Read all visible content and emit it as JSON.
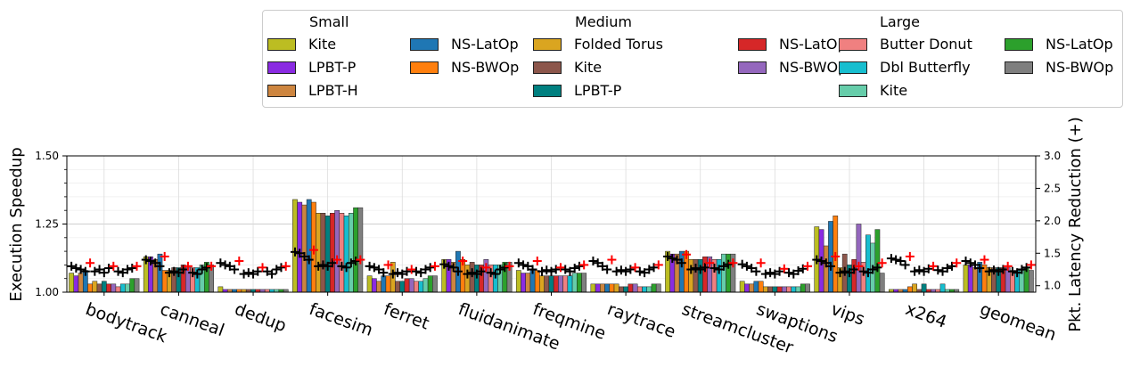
{
  "chart_data": {
    "type": "bar",
    "ylabel_left": "Execution Speedup",
    "ylabel_right": "Pkt. Latency Reduction (+)",
    "ylim_left": [
      1.0,
      1.5
    ],
    "ylim_right": [
      0.9,
      3.0
    ],
    "yticks_left": [
      "1.00",
      "1.25",
      "1.50"
    ],
    "yticks_right": [
      "1.0",
      "1.5",
      "2.0",
      "2.5",
      "3.0"
    ],
    "grid": true,
    "legend_placement": "top-right",
    "categories": [
      "bodytrack",
      "canneal",
      "dedup",
      "facesim",
      "ferret",
      "fluidanimate",
      "freqmine",
      "raytrace",
      "streamcluster",
      "swaptions",
      "vips",
      "x264",
      "geomean"
    ],
    "legend_groups": [
      {
        "title": "Small",
        "entries": [
          {
            "label": "Kite",
            "color": "#bcbd22"
          },
          {
            "label": "LPBT-P",
            "color": "#8a2be2"
          },
          {
            "label": "LPBT-H",
            "color": "#cd853f"
          },
          {
            "label": "NS-LatOp",
            "color": "#1f77b4"
          },
          {
            "label": "NS-BWOp",
            "color": "#ff7f0e"
          }
        ]
      },
      {
        "title": "Medium",
        "entries": [
          {
            "label": "Folded Torus",
            "color": "#daa520"
          },
          {
            "label": "Kite",
            "color": "#8c564b"
          },
          {
            "label": "LPBT-P",
            "color": "#008080"
          },
          {
            "label": "NS-LatOp",
            "color": "#d62728"
          },
          {
            "label": "NS-BWOp",
            "color": "#9467bd"
          }
        ]
      },
      {
        "title": "Large",
        "entries": [
          {
            "label": "Butter Donut",
            "color": "#f08080"
          },
          {
            "label": "Dbl Butterfly",
            "color": "#17becf"
          },
          {
            "label": "Kite",
            "color": "#66cdaa"
          },
          {
            "label": "NS-LatOp",
            "color": "#2ca02c"
          },
          {
            "label": "NS-BWOp",
            "color": "#7f7f7f"
          }
        ]
      }
    ],
    "series_colors": [
      "#bcbd22",
      "#8a2be2",
      "#cd853f",
      "#1f77b4",
      "#ff7f0e",
      "#daa520",
      "#8c564b",
      "#008080",
      "#d62728",
      "#9467bd",
      "#f08080",
      "#17becf",
      "#66cdaa",
      "#2ca02c",
      "#7f7f7f"
    ],
    "speedup_values": [
      [
        1.07,
        1.06,
        1.07,
        1.08,
        1.03,
        1.04,
        1.03,
        1.04,
        1.03,
        1.03,
        1.02,
        1.03,
        1.03,
        1.05,
        1.05
      ],
      [
        1.13,
        1.13,
        1.12,
        1.14,
        1.08,
        1.08,
        1.09,
        1.09,
        1.1,
        1.09,
        1.09,
        1.09,
        1.1,
        1.11,
        1.1
      ],
      [
        1.02,
        1.01,
        1.01,
        1.01,
        1.01,
        1.01,
        1.01,
        1.01,
        1.01,
        1.01,
        1.01,
        1.01,
        1.01,
        1.01,
        1.01
      ],
      [
        1.34,
        1.33,
        1.32,
        1.34,
        1.33,
        1.29,
        1.29,
        1.28,
        1.29,
        1.3,
        1.29,
        1.28,
        1.29,
        1.31,
        1.31
      ],
      [
        1.06,
        1.05,
        1.04,
        1.06,
        1.06,
        1.11,
        1.04,
        1.04,
        1.05,
        1.05,
        1.04,
        1.04,
        1.05,
        1.06,
        1.06
      ],
      [
        1.12,
        1.12,
        1.11,
        1.15,
        1.12,
        1.1,
        1.11,
        1.1,
        1.1,
        1.12,
        1.1,
        1.1,
        1.1,
        1.11,
        1.11
      ],
      [
        1.08,
        1.07,
        1.07,
        1.08,
        1.08,
        1.06,
        1.06,
        1.06,
        1.06,
        1.06,
        1.06,
        1.06,
        1.07,
        1.07,
        1.07
      ],
      [
        1.03,
        1.03,
        1.03,
        1.03,
        1.03,
        1.03,
        1.02,
        1.02,
        1.03,
        1.03,
        1.02,
        1.02,
        1.02,
        1.03,
        1.03
      ],
      [
        1.15,
        1.14,
        1.14,
        1.15,
        1.15,
        1.12,
        1.12,
        1.12,
        1.13,
        1.13,
        1.12,
        1.12,
        1.14,
        1.14,
        1.14
      ],
      [
        1.04,
        1.03,
        1.03,
        1.04,
        1.04,
        1.02,
        1.02,
        1.02,
        1.02,
        1.02,
        1.02,
        1.02,
        1.02,
        1.03,
        1.03
      ],
      [
        1.24,
        1.23,
        1.17,
        1.26,
        1.28,
        1.09,
        1.14,
        1.1,
        1.12,
        1.25,
        1.11,
        1.21,
        1.18,
        1.23,
        1.07
      ],
      [
        1.01,
        1.01,
        1.01,
        1.01,
        1.02,
        1.03,
        1.01,
        1.03,
        1.01,
        1.01,
        1.01,
        1.03,
        1.01,
        1.01,
        1.01
      ],
      [
        1.1,
        1.1,
        1.09,
        1.11,
        1.1,
        1.09,
        1.09,
        1.09,
        1.09,
        1.09,
        1.08,
        1.08,
        1.08,
        1.09,
        1.08
      ]
    ],
    "latency_reduction_values": [
      [
        1.3,
        1.27,
        1.25,
        1.22,
        1.35,
        1.22,
        1.25,
        1.2,
        1.27,
        1.3,
        1.22,
        1.2,
        1.25,
        1.27,
        1.3
      ],
      [
        1.4,
        1.38,
        1.35,
        1.3,
        1.45,
        1.2,
        1.22,
        1.2,
        1.25,
        1.3,
        1.2,
        1.18,
        1.25,
        1.28,
        1.3
      ],
      [
        1.35,
        1.32,
        1.3,
        1.25,
        1.38,
        1.18,
        1.2,
        1.18,
        1.22,
        1.28,
        1.22,
        1.18,
        1.25,
        1.28,
        1.3
      ],
      [
        1.52,
        1.5,
        1.45,
        1.4,
        1.55,
        1.3,
        1.32,
        1.3,
        1.35,
        1.4,
        1.3,
        1.28,
        1.35,
        1.38,
        1.4
      ],
      [
        1.3,
        1.28,
        1.25,
        1.2,
        1.32,
        1.18,
        1.2,
        1.18,
        1.22,
        1.25,
        1.22,
        1.2,
        1.25,
        1.28,
        1.3
      ],
      [
        1.33,
        1.3,
        1.28,
        1.22,
        1.38,
        1.18,
        1.2,
        1.18,
        1.22,
        1.28,
        1.2,
        1.18,
        1.25,
        1.28,
        1.3
      ],
      [
        1.35,
        1.32,
        1.3,
        1.25,
        1.38,
        1.22,
        1.24,
        1.22,
        1.25,
        1.28,
        1.25,
        1.22,
        1.27,
        1.3,
        1.32
      ],
      [
        1.38,
        1.35,
        1.3,
        1.25,
        1.4,
        1.22,
        1.24,
        1.22,
        1.25,
        1.28,
        1.22,
        1.2,
        1.25,
        1.28,
        1.32
      ],
      [
        1.45,
        1.42,
        1.4,
        1.35,
        1.48,
        1.25,
        1.27,
        1.25,
        1.28,
        1.35,
        1.27,
        1.25,
        1.3,
        1.33,
        1.35
      ],
      [
        1.33,
        1.3,
        1.27,
        1.22,
        1.35,
        1.18,
        1.2,
        1.18,
        1.22,
        1.26,
        1.2,
        1.18,
        1.23,
        1.26,
        1.3
      ],
      [
        1.4,
        1.38,
        1.35,
        1.3,
        1.45,
        1.2,
        1.22,
        1.2,
        1.25,
        1.3,
        1.22,
        1.2,
        1.25,
        1.28,
        1.35
      ],
      [
        1.42,
        1.4,
        1.38,
        1.32,
        1.45,
        1.22,
        1.24,
        1.22,
        1.26,
        1.3,
        1.24,
        1.22,
        1.27,
        1.3,
        1.35
      ],
      [
        1.38,
        1.35,
        1.32,
        1.27,
        1.4,
        1.22,
        1.24,
        1.22,
        1.25,
        1.3,
        1.22,
        1.2,
        1.25,
        1.28,
        1.32
      ]
    ],
    "latency_marker_colors": [
      "#000000",
      "#000000",
      "#000000",
      "#000000",
      "#ff0000",
      "#000000",
      "#000000",
      "#000000",
      "#000000",
      "#ff0000",
      "#000000",
      "#000000",
      "#000000",
      "#000000",
      "#ff0000"
    ]
  }
}
